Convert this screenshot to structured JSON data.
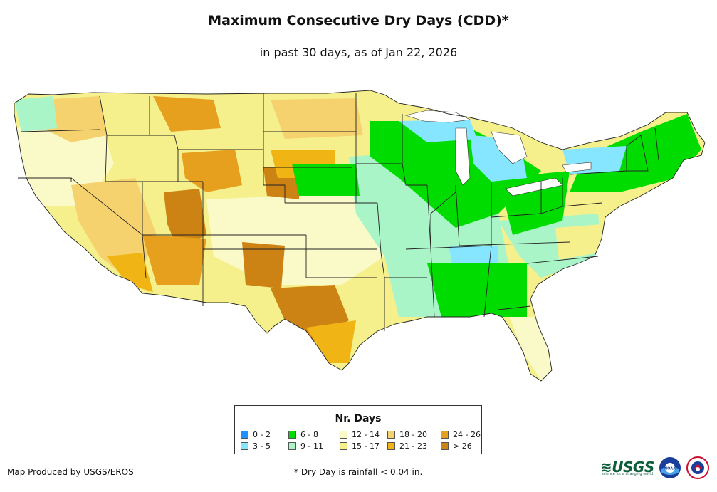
{
  "header": {
    "title": "Maximum Consecutive Dry Days (CDD)*",
    "subtitle": "in past 30 days, as of Jan 22, 2026"
  },
  "legend": {
    "title": "Nr. Days",
    "items": [
      {
        "label": "0 - 2",
        "color": "#1e90ff"
      },
      {
        "label": "3 - 5",
        "color": "#87e6ff"
      },
      {
        "label": "6 - 8",
        "color": "#00dc00"
      },
      {
        "label": "9 - 11",
        "color": "#aaf5c8"
      },
      {
        "label": "12 - 14",
        "color": "#fafac8"
      },
      {
        "label": "15 - 17",
        "color": "#f5f08c"
      },
      {
        "label": "18 - 20",
        "color": "#f5d26e"
      },
      {
        "label": "21 - 23",
        "color": "#f0b414"
      },
      {
        "label": "24 - 26",
        "color": "#e6a01e"
      },
      {
        "label": "> 26",
        "color": "#cd8214"
      }
    ]
  },
  "footer": {
    "credit": "Map Produced by USGS/EROS",
    "footnote": "* Dry Day is rainfall < 0.04 in."
  },
  "logos": {
    "usgs_wordmark": "≋USGS",
    "usgs_tagline": "science for a changing world",
    "noaa_text": "NOAA"
  }
}
